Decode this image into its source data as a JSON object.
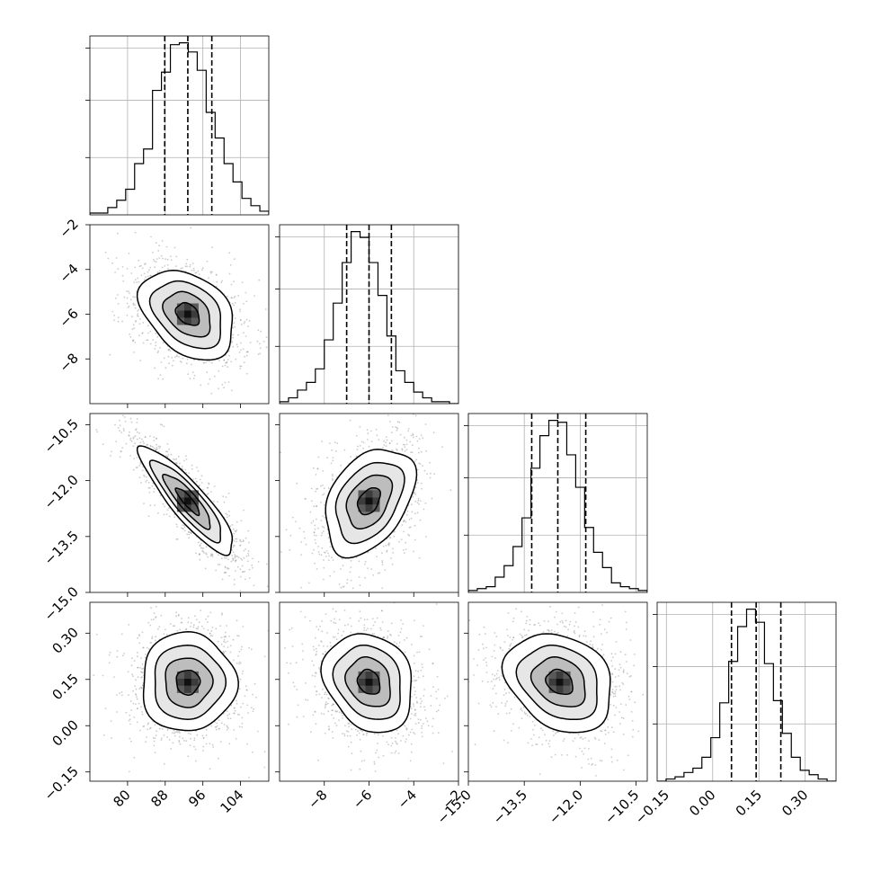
{
  "chart_data": {
    "type": "scatter",
    "subtype": "corner-plot",
    "title": "",
    "grid": true,
    "parameters": [
      {
        "index": 0,
        "xlabel": "",
        "range": [
          72,
          110
        ],
        "ticks": [
          80,
          88,
          96,
          104
        ],
        "tick_labels": [
          "80",
          "88",
          "96",
          "104"
        ],
        "quantiles": [
          87.9,
          92.8,
          97.9
        ],
        "histogram": {
          "bin_start": 72,
          "bin_width": 1.9,
          "counts": [
            1,
            1,
            4,
            8,
            14,
            28,
            36,
            68,
            78,
            93,
            94,
            89,
            79,
            56,
            42,
            28,
            18,
            9,
            5,
            2
          ]
        }
      },
      {
        "index": 1,
        "xlabel": "",
        "range": [
          -10,
          -2
        ],
        "ticks": [
          -8,
          -6,
          -4,
          -2
        ],
        "tick_labels": [
          "−8",
          "−6",
          "−4",
          "−2"
        ],
        "quantiles": [
          -7.0,
          -6.0,
          -5.0
        ],
        "histogram": {
          "bin_start": -10,
          "bin_width": 0.4,
          "counts": [
            1,
            3,
            7,
            11,
            18,
            33,
            52,
            73,
            89,
            86,
            73,
            56,
            35,
            17,
            11,
            6,
            3,
            1,
            1,
            0
          ]
        }
      },
      {
        "index": 2,
        "xlabel": "",
        "range": [
          -15,
          -10.2
        ],
        "ticks": [
          -15.0,
          -13.5,
          -12.0,
          -10.5
        ],
        "tick_labels": [
          "−15.0",
          "−13.5",
          "−12.0",
          "−10.5"
        ],
        "quantiles": [
          -13.3,
          -12.6,
          -11.85
        ],
        "histogram": {
          "bin_start": -15,
          "bin_width": 0.24,
          "counts": [
            1,
            2,
            3,
            8,
            14,
            24,
            39,
            65,
            82,
            90,
            89,
            72,
            55,
            34,
            21,
            13,
            5,
            3,
            2,
            1
          ]
        }
      },
      {
        "index": 3,
        "xlabel": "",
        "range": [
          -0.18,
          0.4
        ],
        "ticks": [
          -0.15,
          0.0,
          0.15,
          0.3
        ],
        "tick_labels": [
          "−0.15",
          "0.00",
          "0.15",
          "0.30"
        ],
        "quantiles": [
          0.061,
          0.141,
          0.221
        ],
        "histogram": {
          "bin_start": -0.18,
          "bin_width": 0.029,
          "counts": [
            0,
            1,
            2,
            4,
            6,
            11,
            20,
            36,
            55,
            71,
            79,
            73,
            54,
            37,
            22,
            11,
            5,
            3,
            1,
            0
          ]
        }
      }
    ],
    "pairs": [
      {
        "x_param": 0,
        "y_param": 1,
        "mean": [
          92.8,
          -6.0
        ],
        "sd": [
          5.0,
          1.0
        ],
        "correlation": -0.35
      },
      {
        "x_param": 0,
        "y_param": 2,
        "mean": [
          92.8,
          -12.55
        ],
        "sd": [
          5.0,
          0.72
        ],
        "correlation": -0.88
      },
      {
        "x_param": 1,
        "y_param": 2,
        "mean": [
          -6.0,
          -12.55
        ],
        "sd": [
          1.0,
          0.72
        ],
        "correlation": 0.38
      },
      {
        "x_param": 0,
        "y_param": 3,
        "mean": [
          92.8,
          0.141
        ],
        "sd": [
          5.0,
          0.08
        ],
        "correlation": 0.0
      },
      {
        "x_param": 1,
        "y_param": 3,
        "mean": [
          -6.0,
          0.141
        ],
        "sd": [
          1.0,
          0.08
        ],
        "correlation": -0.2
      },
      {
        "x_param": 2,
        "y_param": 3,
        "mean": [
          -12.55,
          0.141
        ],
        "sd": [
          0.72,
          0.08
        ],
        "correlation": -0.25
      }
    ],
    "contour_levels_sigma": [
      0.5,
      1.0,
      1.5,
      2.0
    ],
    "colors": {
      "ink": "#000000",
      "points": "#9a9a9a",
      "grid": "#b0b0b0"
    }
  }
}
